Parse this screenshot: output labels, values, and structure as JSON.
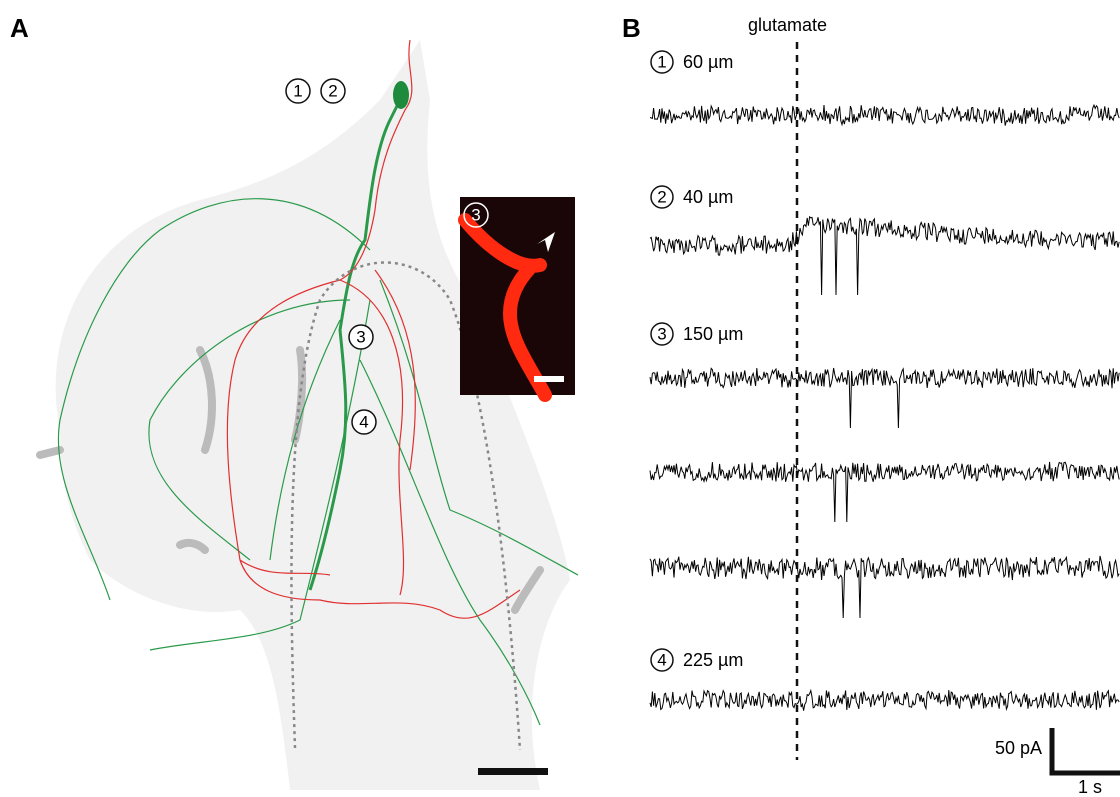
{
  "panel_a": {
    "label": "A",
    "markers": [
      "1",
      "2",
      "3",
      "4"
    ],
    "inset_marker": "3"
  },
  "panel_b": {
    "label": "B",
    "stimulus": "glutamate",
    "traces": [
      {
        "marker": "1",
        "label": "60 µm"
      },
      {
        "marker": "2",
        "label": "40 µm"
      },
      {
        "marker": "3",
        "label": "150 µm"
      },
      {
        "marker": "4",
        "label": "225 µm"
      }
    ],
    "scale_y": "50 pA",
    "scale_x": "1 s"
  }
}
